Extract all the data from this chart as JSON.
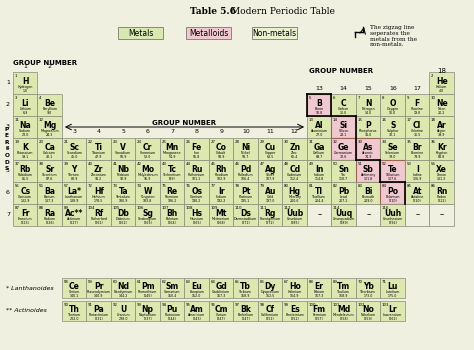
{
  "title_bold": "Table 5.6",
  "title_rest": " Modern Periodic Table",
  "background": "#f0f0e0",
  "cell_metal": "#dde8b0",
  "cell_metalloid": "#f0c8d0",
  "cell_nonmetal": "#dde8b0",
  "cell_other": "#dde8b0",
  "legend_metal_color": "#d8e8b0",
  "legend_metalloid_color": "#f0c8d0",
  "legend_nonmetal_color": "#e8f0d0",
  "zigzag_note": "The zigzag line\nseperates the\nmetals from the\nnon-metals.",
  "elements": [
    {
      "num": 1,
      "sym": "H",
      "name": "Hydrogen",
      "mass": "1.0",
      "row": 1,
      "col": 1,
      "type": "other"
    },
    {
      "num": 2,
      "sym": "He",
      "name": "Helium",
      "mass": "4.0",
      "row": 1,
      "col": 18,
      "type": "nonmetal"
    },
    {
      "num": 3,
      "sym": "Li",
      "name": "Lithium",
      "mass": "6.9",
      "row": 2,
      "col": 1,
      "type": "metal"
    },
    {
      "num": 4,
      "sym": "Be",
      "name": "Beryllium",
      "mass": "9.0",
      "row": 2,
      "col": 2,
      "type": "metal"
    },
    {
      "num": 5,
      "sym": "B",
      "name": "Boron",
      "mass": "10.8",
      "row": 2,
      "col": 13,
      "type": "metalloid"
    },
    {
      "num": 6,
      "sym": "C",
      "name": "Carbon",
      "mass": "12.0",
      "row": 2,
      "col": 14,
      "type": "nonmetal"
    },
    {
      "num": 7,
      "sym": "N",
      "name": "Nitrogen",
      "mass": "14.0",
      "row": 2,
      "col": 15,
      "type": "nonmetal"
    },
    {
      "num": 8,
      "sym": "O",
      "name": "Oxygen",
      "mass": "16.0",
      "row": 2,
      "col": 16,
      "type": "nonmetal"
    },
    {
      "num": 9,
      "sym": "F",
      "name": "Fluorine",
      "mass": "19.0",
      "row": 2,
      "col": 17,
      "type": "nonmetal"
    },
    {
      "num": 10,
      "sym": "Ne",
      "name": "Neon",
      "mass": "20.2",
      "row": 2,
      "col": 18,
      "type": "nonmetal"
    },
    {
      "num": 11,
      "sym": "Na",
      "name": "Sodium",
      "mass": "23.0",
      "row": 3,
      "col": 1,
      "type": "metal"
    },
    {
      "num": 12,
      "sym": "Mg",
      "name": "Magnesium",
      "mass": "24.3",
      "row": 3,
      "col": 2,
      "type": "metal"
    },
    {
      "num": 13,
      "sym": "Al",
      "name": "Aluminium",
      "mass": "27.0",
      "row": 3,
      "col": 13,
      "type": "metal"
    },
    {
      "num": 14,
      "sym": "Si",
      "name": "Silicon",
      "mass": "28.1",
      "row": 3,
      "col": 14,
      "type": "metalloid"
    },
    {
      "num": 15,
      "sym": "P",
      "name": "Phosphorus",
      "mass": "31.0",
      "row": 3,
      "col": 15,
      "type": "nonmetal"
    },
    {
      "num": 16,
      "sym": "S",
      "name": "Sulphur",
      "mass": "32.1",
      "row": 3,
      "col": 16,
      "type": "nonmetal"
    },
    {
      "num": 17,
      "sym": "Cl",
      "name": "Chlorine",
      "mass": "35.5",
      "row": 3,
      "col": 17,
      "type": "nonmetal"
    },
    {
      "num": 18,
      "sym": "Ar",
      "name": "Argon",
      "mass": "39.9",
      "row": 3,
      "col": 18,
      "type": "nonmetal"
    },
    {
      "num": 19,
      "sym": "K",
      "name": "Potassium",
      "mass": "39.1",
      "row": 4,
      "col": 1,
      "type": "metal"
    },
    {
      "num": 20,
      "sym": "Ca",
      "name": "Calcium",
      "mass": "40.1",
      "row": 4,
      "col": 2,
      "type": "metal"
    },
    {
      "num": 21,
      "sym": "Sc",
      "name": "Scandium",
      "mass": "45.0",
      "row": 4,
      "col": 3,
      "type": "metal"
    },
    {
      "num": 22,
      "sym": "Ti",
      "name": "Titanium",
      "mass": "47.9",
      "row": 4,
      "col": 4,
      "type": "metal"
    },
    {
      "num": 23,
      "sym": "V",
      "name": "Vanadium",
      "mass": "50.9",
      "row": 4,
      "col": 5,
      "type": "metal"
    },
    {
      "num": 24,
      "sym": "Cr",
      "name": "Chromium",
      "mass": "52.0",
      "row": 4,
      "col": 6,
      "type": "metal"
    },
    {
      "num": 25,
      "sym": "Mn",
      "name": "Manganese",
      "mass": "54.9",
      "row": 4,
      "col": 7,
      "type": "metal"
    },
    {
      "num": 26,
      "sym": "Fe",
      "name": "Iron",
      "mass": "55.8",
      "row": 4,
      "col": 8,
      "type": "metal"
    },
    {
      "num": 27,
      "sym": "Co",
      "name": "Cobalt",
      "mass": "58.9",
      "row": 4,
      "col": 9,
      "type": "metal"
    },
    {
      "num": 28,
      "sym": "Ni",
      "name": "Nickel",
      "mass": "58.7",
      "row": 4,
      "col": 10,
      "type": "metal"
    },
    {
      "num": 29,
      "sym": "Cu",
      "name": "Copper",
      "mass": "63.5",
      "row": 4,
      "col": 11,
      "type": "metal"
    },
    {
      "num": 30,
      "sym": "Zn",
      "name": "Zinc",
      "mass": "65.4",
      "row": 4,
      "col": 12,
      "type": "metal"
    },
    {
      "num": 31,
      "sym": "Ga",
      "name": "Gallium",
      "mass": "69.7",
      "row": 4,
      "col": 13,
      "type": "metal"
    },
    {
      "num": 32,
      "sym": "Ge",
      "name": "Germanium",
      "mass": "72.6",
      "row": 4,
      "col": 14,
      "type": "metalloid"
    },
    {
      "num": 33,
      "sym": "As",
      "name": "Arsenic",
      "mass": "74.9",
      "row": 4,
      "col": 15,
      "type": "metalloid"
    },
    {
      "num": 34,
      "sym": "Se",
      "name": "Selenium",
      "mass": "79.0",
      "row": 4,
      "col": 16,
      "type": "nonmetal"
    },
    {
      "num": 35,
      "sym": "Br",
      "name": "Bromine",
      "mass": "79.9",
      "row": 4,
      "col": 17,
      "type": "nonmetal"
    },
    {
      "num": 36,
      "sym": "Kr",
      "name": "Krypton",
      "mass": "83.8",
      "row": 4,
      "col": 18,
      "type": "nonmetal"
    },
    {
      "num": 37,
      "sym": "Rb",
      "name": "Rubidium",
      "mass": "85.5",
      "row": 5,
      "col": 1,
      "type": "metal"
    },
    {
      "num": 38,
      "sym": "Sr",
      "name": "Strontium",
      "mass": "87.6",
      "row": 5,
      "col": 2,
      "type": "metal"
    },
    {
      "num": 39,
      "sym": "Y",
      "name": "Yttrium",
      "mass": "88.9",
      "row": 5,
      "col": 3,
      "type": "metal"
    },
    {
      "num": 40,
      "sym": "Zr",
      "name": "Zirconium",
      "mass": "91.2",
      "row": 5,
      "col": 4,
      "type": "metal"
    },
    {
      "num": 41,
      "sym": "Nb",
      "name": "Niobium",
      "mass": "92.9",
      "row": 5,
      "col": 5,
      "type": "metal"
    },
    {
      "num": 42,
      "sym": "Mo",
      "name": "Molybdenum",
      "mass": "95.9",
      "row": 5,
      "col": 6,
      "type": "metal"
    },
    {
      "num": 43,
      "sym": "Tc",
      "name": "Technetium",
      "mass": "(99)",
      "row": 5,
      "col": 7,
      "type": "metal"
    },
    {
      "num": 44,
      "sym": "Ru",
      "name": "Ruthenium",
      "mass": "101.1",
      "row": 5,
      "col": 8,
      "type": "metal"
    },
    {
      "num": 45,
      "sym": "Rh",
      "name": "Rhodium",
      "mass": "102.9",
      "row": 5,
      "col": 9,
      "type": "metal"
    },
    {
      "num": 46,
      "sym": "Pd",
      "name": "Palladium",
      "mass": "106.4",
      "row": 5,
      "col": 10,
      "type": "metal"
    },
    {
      "num": 47,
      "sym": "Ag",
      "name": "Silver",
      "mass": "107.9",
      "row": 5,
      "col": 11,
      "type": "metal"
    },
    {
      "num": 48,
      "sym": "Cd",
      "name": "Cadmium",
      "mass": "112.4",
      "row": 5,
      "col": 12,
      "type": "metal"
    },
    {
      "num": 49,
      "sym": "In",
      "name": "Indium",
      "mass": "114.8",
      "row": 5,
      "col": 13,
      "type": "metal"
    },
    {
      "num": 50,
      "sym": "Sn",
      "name": "Tin",
      "mass": "118.7",
      "row": 5,
      "col": 14,
      "type": "metal"
    },
    {
      "num": 51,
      "sym": "Sb",
      "name": "Antimony",
      "mass": "121.8",
      "row": 5,
      "col": 15,
      "type": "metalloid"
    },
    {
      "num": 52,
      "sym": "Te",
      "name": "Tellurium",
      "mass": "127.6",
      "row": 5,
      "col": 16,
      "type": "metalloid"
    },
    {
      "num": 53,
      "sym": "I",
      "name": "Iodine",
      "mass": "126.9",
      "row": 5,
      "col": 17,
      "type": "nonmetal"
    },
    {
      "num": 54,
      "sym": "Xe",
      "name": "Xenon",
      "mass": "131.3",
      "row": 5,
      "col": 18,
      "type": "nonmetal"
    },
    {
      "num": 55,
      "sym": "Cs",
      "name": "Caesium",
      "mass": "132.9",
      "row": 6,
      "col": 1,
      "type": "metal"
    },
    {
      "num": 56,
      "sym": "Ba",
      "name": "Barium",
      "mass": "137.3",
      "row": 6,
      "col": 2,
      "type": "metal"
    },
    {
      "num": 57,
      "sym": "La*",
      "name": "Lanthanum",
      "mass": "138.9",
      "row": 6,
      "col": 3,
      "type": "metal"
    },
    {
      "num": 72,
      "sym": "Hf",
      "name": "Hafnium",
      "mass": "178.5",
      "row": 6,
      "col": 4,
      "type": "metal"
    },
    {
      "num": 73,
      "sym": "Ta",
      "name": "Tantalum",
      "mass": "180.9",
      "row": 6,
      "col": 5,
      "type": "metal"
    },
    {
      "num": 74,
      "sym": "W",
      "name": "Tungsten",
      "mass": "183.8",
      "row": 6,
      "col": 6,
      "type": "metal"
    },
    {
      "num": 75,
      "sym": "Re",
      "name": "Rhenium",
      "mass": "186.2",
      "row": 6,
      "col": 7,
      "type": "metal"
    },
    {
      "num": 76,
      "sym": "Os",
      "name": "Osmium",
      "mass": "190.2",
      "row": 6,
      "col": 8,
      "type": "metal"
    },
    {
      "num": 77,
      "sym": "Ir",
      "name": "Iridium",
      "mass": "192.2",
      "row": 6,
      "col": 9,
      "type": "metal"
    },
    {
      "num": 78,
      "sym": "Pt",
      "name": "Platinum",
      "mass": "195.1",
      "row": 6,
      "col": 10,
      "type": "metal"
    },
    {
      "num": 79,
      "sym": "Au",
      "name": "Gold",
      "mass": "197.0",
      "row": 6,
      "col": 11,
      "type": "metal"
    },
    {
      "num": 80,
      "sym": "Hg",
      "name": "Mercury",
      "mass": "200.6",
      "row": 6,
      "col": 12,
      "type": "metal"
    },
    {
      "num": 81,
      "sym": "Tl",
      "name": "Thallium",
      "mass": "204.4",
      "row": 6,
      "col": 13,
      "type": "metal"
    },
    {
      "num": 82,
      "sym": "Pb",
      "name": "Lead",
      "mass": "207.2",
      "row": 6,
      "col": 14,
      "type": "metal"
    },
    {
      "num": 83,
      "sym": "Bi",
      "name": "Bismuth",
      "mass": "209.0",
      "row": 6,
      "col": 15,
      "type": "metal"
    },
    {
      "num": 84,
      "sym": "Po",
      "name": "Polonium",
      "mass": "(210)",
      "row": 6,
      "col": 16,
      "type": "metalloid"
    },
    {
      "num": 85,
      "sym": "At",
      "name": "Astatine",
      "mass": "(210)",
      "row": 6,
      "col": 17,
      "type": "nonmetal"
    },
    {
      "num": 86,
      "sym": "Rn",
      "name": "Radon",
      "mass": "(222)",
      "row": 6,
      "col": 18,
      "type": "nonmetal"
    },
    {
      "num": 87,
      "sym": "Fr",
      "name": "Francium",
      "mass": "(223)",
      "row": 7,
      "col": 1,
      "type": "metal"
    },
    {
      "num": 88,
      "sym": "Ra",
      "name": "Radium",
      "mass": "(226)",
      "row": 7,
      "col": 2,
      "type": "metal"
    },
    {
      "num": 89,
      "sym": "Ac**",
      "name": "Actinium",
      "mass": "(227)",
      "row": 7,
      "col": 3,
      "type": "metal"
    },
    {
      "num": 104,
      "sym": "Rf",
      "name": "Rutherford",
      "mass": "(261)",
      "row": 7,
      "col": 4,
      "type": "metal"
    },
    {
      "num": 105,
      "sym": "Db",
      "name": "Dubnium",
      "mass": "(262)",
      "row": 7,
      "col": 5,
      "type": "metal"
    },
    {
      "num": 106,
      "sym": "Sg",
      "name": "Seaborgium",
      "mass": "(263)",
      "row": 7,
      "col": 6,
      "type": "metal"
    },
    {
      "num": 107,
      "sym": "Bh",
      "name": "Bohrium",
      "mass": "(264)",
      "row": 7,
      "col": 7,
      "type": "metal"
    },
    {
      "num": 108,
      "sym": "Hs",
      "name": "Hassium",
      "mass": "(265)",
      "row": 7,
      "col": 8,
      "type": "metal"
    },
    {
      "num": 109,
      "sym": "Mt",
      "name": "Meitnerium",
      "mass": "(268)",
      "row": 7,
      "col": 9,
      "type": "metal"
    },
    {
      "num": 110,
      "sym": "Ds",
      "name": "Darmstadtium",
      "mass": "(271)",
      "row": 7,
      "col": 10,
      "type": "metal"
    },
    {
      "num": 111,
      "sym": "Rg",
      "name": "Roentgenium",
      "mass": "(272)",
      "row": 7,
      "col": 11,
      "type": "metal"
    },
    {
      "num": 112,
      "sym": "Uub",
      "name": "Ununbium",
      "mass": "(285)",
      "row": 7,
      "col": 12,
      "type": "metal"
    },
    {
      "num": 114,
      "sym": "Uuq",
      "name": "Ununquadium",
      "mass": "(289)",
      "row": 7,
      "col": 14,
      "type": "metal"
    },
    {
      "num": 116,
      "sym": "Uuh",
      "name": "Ununhexium",
      "mass": "(292)",
      "row": 7,
      "col": 16,
      "type": "metal"
    }
  ],
  "lanthanoids": [
    {
      "num": 58,
      "sym": "Ce",
      "name": "Cerium",
      "mass": "140.1"
    },
    {
      "num": 59,
      "sym": "Pr",
      "name": "Praseodymium",
      "mass": "140.9"
    },
    {
      "num": 60,
      "sym": "Nd",
      "name": "Neodymium",
      "mass": "144.2"
    },
    {
      "num": 61,
      "sym": "Pm",
      "name": "Promethium",
      "mass": "(145)"
    },
    {
      "num": 62,
      "sym": "Sm",
      "name": "Samarium",
      "mass": "150.4"
    },
    {
      "num": 63,
      "sym": "Eu",
      "name": "Europium",
      "mass": "152.0"
    },
    {
      "num": 64,
      "sym": "Gd",
      "name": "Gadolinium",
      "mass": "157.3"
    },
    {
      "num": 65,
      "sym": "Tb",
      "name": "Terbium",
      "mass": "158.9"
    },
    {
      "num": 66,
      "sym": "Dy",
      "name": "Dysprosium",
      "mass": "162.5"
    },
    {
      "num": 67,
      "sym": "Ho",
      "name": "Holmium",
      "mass": "164.9"
    },
    {
      "num": 68,
      "sym": "Er",
      "name": "Erbium",
      "mass": "167.3"
    },
    {
      "num": 69,
      "sym": "Tm",
      "name": "Thulium",
      "mass": "168.9"
    },
    {
      "num": 70,
      "sym": "Yb",
      "name": "Ytterbium",
      "mass": "173.0"
    },
    {
      "num": 71,
      "sym": "Lu",
      "name": "Lutetium",
      "mass": "175.0"
    }
  ],
  "actinoids": [
    {
      "num": 90,
      "sym": "Th",
      "name": "Thorium",
      "mass": "232.0"
    },
    {
      "num": 91,
      "sym": "Pa",
      "name": "Protactinium",
      "mass": "(231)"
    },
    {
      "num": 92,
      "sym": "U",
      "name": "Uranium",
      "mass": "238.0"
    },
    {
      "num": 93,
      "sym": "Np",
      "name": "Neptunium",
      "mass": "(237)"
    },
    {
      "num": 94,
      "sym": "Pu",
      "name": "Plutonium",
      "mass": "(244)"
    },
    {
      "num": 95,
      "sym": "Am",
      "name": "Americium",
      "mass": "(243)"
    },
    {
      "num": 96,
      "sym": "Cm",
      "name": "Curium",
      "mass": "(247)"
    },
    {
      "num": 97,
      "sym": "Bk",
      "name": "Berkelium",
      "mass": "(247)"
    },
    {
      "num": 98,
      "sym": "Cf",
      "name": "Californium",
      "mass": "(251)"
    },
    {
      "num": 99,
      "sym": "Es",
      "name": "Einsteinium",
      "mass": "(252)"
    },
    {
      "num": 100,
      "sym": "Fm",
      "name": "Fermium",
      "mass": "(257)"
    },
    {
      "num": 101,
      "sym": "Md",
      "name": "Mendelevium",
      "mass": "(258)"
    },
    {
      "num": 102,
      "sym": "No",
      "name": "Nobelium",
      "mass": "(259)"
    },
    {
      "num": 103,
      "sym": "Lr",
      "name": "Lawrencium",
      "mass": "(262)"
    }
  ]
}
